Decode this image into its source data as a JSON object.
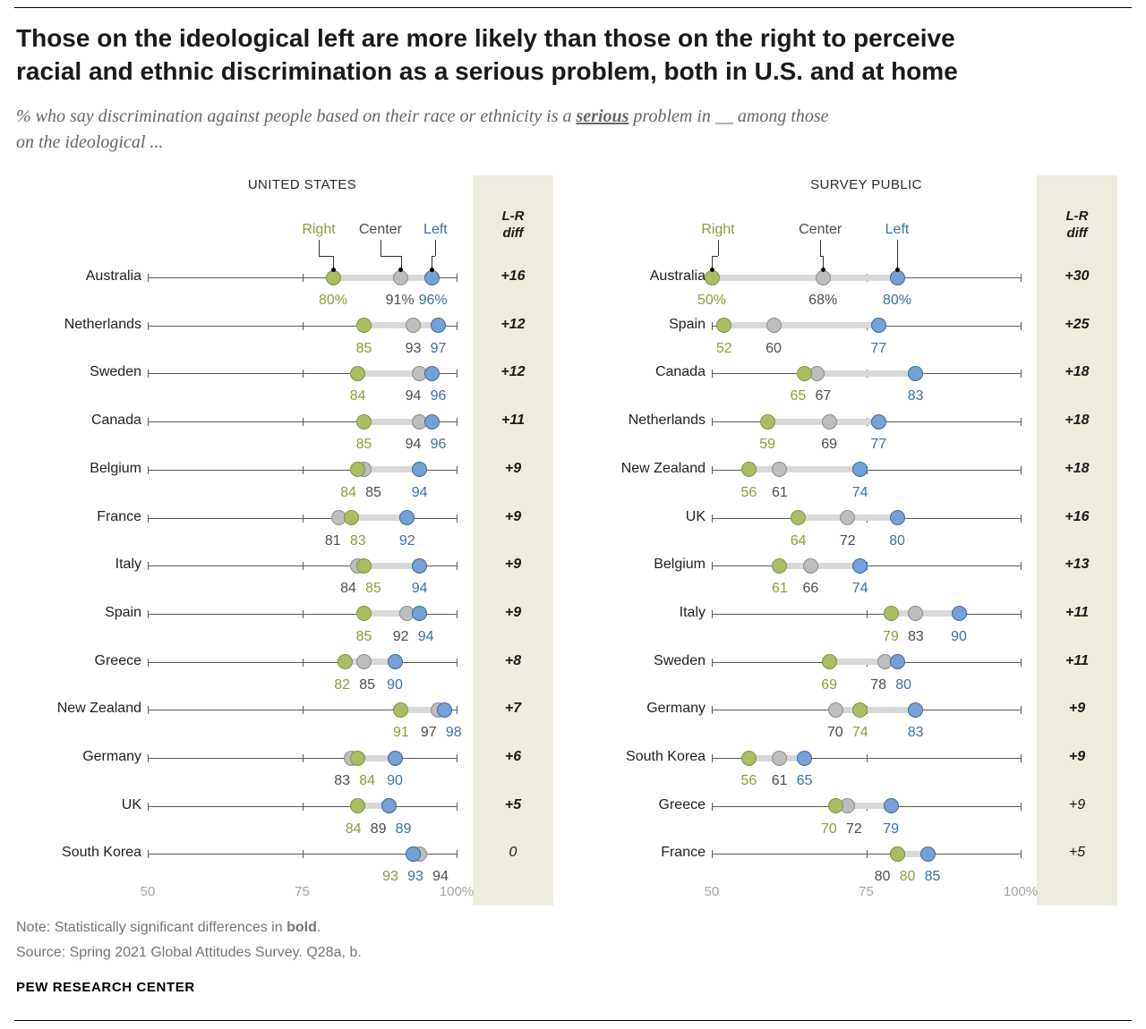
{
  "header": {
    "title_lines": [
      "Those on the ideological left are more likely than those on the right to perceive",
      "racial and ethnic discrimination as a serious problem, both in U.S. and at home"
    ],
    "subtitle_prefix": "% who say discrimination against people based on their race or ethnicity is a ",
    "subtitle_emphasis": "serious",
    "subtitle_suffix": " problem in __ among those",
    "subtitle_line2": "on the ideological ..."
  },
  "legend": {
    "right": "Right",
    "center": "Center",
    "left": "Left"
  },
  "colors": {
    "right_fill": "#a9bd64",
    "right_stroke": "#81953c",
    "right_text": "#8a9e38",
    "center_fill": "#bdbdbd",
    "center_stroke": "#8c8c8c",
    "center_text": "#4d4d4d",
    "left_fill": "#74a2d6",
    "left_stroke": "#41699b",
    "left_text": "#3d6fa5",
    "connector": "#d8d8d8",
    "diff_bg": "#edecdf",
    "axis": "#5a5a5a",
    "tick_label": "#a3a3a3"
  },
  "footer": {
    "note_prefix": "Note: Statistically significant differences in ",
    "note_bold": "bold",
    "note_suffix": ".",
    "source": "Source: Spring 2021 Global Attitudes Survey. Q28a, b.",
    "brand": "PEW RESEARCH CENTER"
  },
  "chart_data": [
    {
      "type": "dot-plot",
      "panel": "UNITED STATES",
      "diff_label": "L-R diff",
      "xlim": [
        50,
        100
      ],
      "xticks": [
        50,
        75,
        100
      ],
      "xtick_labels": [
        "50",
        "75",
        "100%"
      ],
      "rows": [
        {
          "country": "Australia",
          "values": {
            "right": 80,
            "center": 91,
            "left": 96
          },
          "labels": {
            "right": "80%",
            "center": "91%",
            "left": "96%"
          },
          "diff": "+16",
          "diff_bold": true
        },
        {
          "country": "Netherlands",
          "values": {
            "right": 85,
            "center": 93,
            "left": 97
          },
          "labels": {
            "right": "85",
            "center": "93",
            "left": "97"
          },
          "diff": "+12",
          "diff_bold": true
        },
        {
          "country": "Sweden",
          "values": {
            "right": 84,
            "center": 94,
            "left": 96
          },
          "labels": {
            "right": "84",
            "center": "94",
            "left": "96"
          },
          "diff": "+12",
          "diff_bold": true
        },
        {
          "country": "Canada",
          "values": {
            "right": 85,
            "center": 94,
            "left": 96
          },
          "labels": {
            "right": "85",
            "center": "94",
            "left": "96"
          },
          "diff": "+11",
          "diff_bold": true
        },
        {
          "country": "Belgium",
          "values": {
            "right": 84,
            "center": 85,
            "left": 94
          },
          "labels": {
            "right": "84",
            "center": "85",
            "left": "94"
          },
          "diff": "+9",
          "diff_bold": true
        },
        {
          "country": "France",
          "values": {
            "right": 83,
            "center": 81,
            "left": 92
          },
          "labels": {
            "right": "83",
            "center": "81",
            "left": "92"
          },
          "diff": "+9",
          "diff_bold": true
        },
        {
          "country": "Italy",
          "values": {
            "right": 85,
            "center": 84,
            "left": 94
          },
          "labels": {
            "right": "85",
            "center": "84",
            "left": "94"
          },
          "diff": "+9",
          "diff_bold": true
        },
        {
          "country": "Spain",
          "values": {
            "right": 85,
            "center": 92,
            "left": 94
          },
          "labels": {
            "right": "85",
            "center": "92",
            "left": "94"
          },
          "diff": "+9",
          "diff_bold": true
        },
        {
          "country": "Greece",
          "values": {
            "right": 82,
            "center": 85,
            "left": 90
          },
          "labels": {
            "right": "82",
            "center": "85",
            "left": "90"
          },
          "diff": "+8",
          "diff_bold": true
        },
        {
          "country": "New Zealand",
          "values": {
            "right": 91,
            "center": 97,
            "left": 98
          },
          "labels": {
            "right": "91",
            "center": "97",
            "left": "98"
          },
          "diff": "+7",
          "diff_bold": true
        },
        {
          "country": "Germany",
          "values": {
            "right": 84,
            "center": 83,
            "left": 90
          },
          "labels": {
            "right": "84",
            "center": "83",
            "left": "90"
          },
          "diff": "+6",
          "diff_bold": true
        },
        {
          "country": "UK",
          "values": {
            "right": 84,
            "center": 89,
            "left": 89
          },
          "labels": {
            "right": "84",
            "center": "89",
            "left": "89"
          },
          "diff": "+5",
          "diff_bold": true
        },
        {
          "country": "South Korea",
          "values": {
            "right": 93,
            "center": 94,
            "left": 93
          },
          "labels": {
            "right": "93",
            "center": "94",
            "left": "93"
          },
          "diff": "0",
          "diff_bold": false
        }
      ]
    },
    {
      "type": "dot-plot",
      "panel": "SURVEY PUBLIC",
      "diff_label": "L-R diff",
      "xlim": [
        50,
        100
      ],
      "xticks": [
        50,
        75,
        100
      ],
      "xtick_labels": [
        "50",
        "75",
        "100%"
      ],
      "rows": [
        {
          "country": "Australia",
          "values": {
            "right": 50,
            "center": 68,
            "left": 80
          },
          "labels": {
            "right": "50%",
            "center": "68%",
            "left": "80%"
          },
          "diff": "+30",
          "diff_bold": true
        },
        {
          "country": "Spain",
          "values": {
            "right": 52,
            "center": 60,
            "left": 77
          },
          "labels": {
            "right": "52",
            "center": "60",
            "left": "77"
          },
          "diff": "+25",
          "diff_bold": true
        },
        {
          "country": "Canada",
          "values": {
            "right": 65,
            "center": 67,
            "left": 83
          },
          "labels": {
            "right": "65",
            "center": "67",
            "left": "83"
          },
          "diff": "+18",
          "diff_bold": true
        },
        {
          "country": "Netherlands",
          "values": {
            "right": 59,
            "center": 69,
            "left": 77
          },
          "labels": {
            "right": "59",
            "center": "69",
            "left": "77"
          },
          "diff": "+18",
          "diff_bold": true
        },
        {
          "country": "New Zealand",
          "values": {
            "right": 56,
            "center": 61,
            "left": 74
          },
          "labels": {
            "right": "56",
            "center": "61",
            "left": "74"
          },
          "diff": "+18",
          "diff_bold": true
        },
        {
          "country": "UK",
          "values": {
            "right": 64,
            "center": 72,
            "left": 80
          },
          "labels": {
            "right": "64",
            "center": "72",
            "left": "80"
          },
          "diff": "+16",
          "diff_bold": true
        },
        {
          "country": "Belgium",
          "values": {
            "right": 61,
            "center": 66,
            "left": 74
          },
          "labels": {
            "right": "61",
            "center": "66",
            "left": "74"
          },
          "diff": "+13",
          "diff_bold": true
        },
        {
          "country": "Italy",
          "values": {
            "right": 79,
            "center": 83,
            "left": 90
          },
          "labels": {
            "right": "79",
            "center": "83",
            "left": "90"
          },
          "diff": "+11",
          "diff_bold": true
        },
        {
          "country": "Sweden",
          "values": {
            "right": 69,
            "center": 78,
            "left": 80
          },
          "labels": {
            "right": "69",
            "center": "78",
            "left": "80"
          },
          "diff": "+11",
          "diff_bold": true
        },
        {
          "country": "Germany",
          "values": {
            "right": 74,
            "center": 70,
            "left": 83
          },
          "labels": {
            "right": "74",
            "center": "70",
            "left": "83"
          },
          "diff": "+9",
          "diff_bold": true
        },
        {
          "country": "South Korea",
          "values": {
            "right": 56,
            "center": 61,
            "left": 65
          },
          "labels": {
            "right": "56",
            "center": "61",
            "left": "65"
          },
          "diff": "+9",
          "diff_bold": true
        },
        {
          "country": "Greece",
          "values": {
            "right": 70,
            "center": 72,
            "left": 79
          },
          "labels": {
            "right": "70",
            "center": "72",
            "left": "79"
          },
          "diff": "+9",
          "diff_bold": false
        },
        {
          "country": "France",
          "values": {
            "right": 80,
            "center": 80,
            "left": 85
          },
          "labels": {
            "right": "80",
            "center": "80",
            "left": "85"
          },
          "diff": "+5",
          "diff_bold": false
        }
      ]
    }
  ]
}
